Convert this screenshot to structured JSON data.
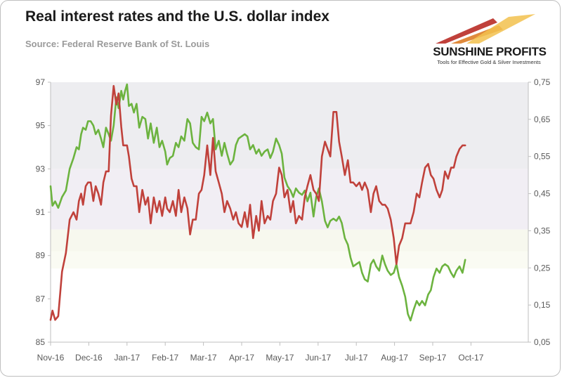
{
  "header": {
    "title": "Real interest rates and the U.S. dollar index",
    "source": "Source: Federal Reserve Bank of St. Louis"
  },
  "logo": {
    "name": "SUNSHINE PROFITS",
    "tagline": "Tools for Effective Gold & Silver Investments"
  },
  "colors": {
    "dollar_series": "#6cb33f",
    "real_rate_series": "#c0413b",
    "axis": "#bfbfbf",
    "band_top": "#ededf0",
    "band_mid": "#f1eef4",
    "band_low": "#f7f8ee",
    "band_low2": "#fafbf3"
  },
  "chart_data": {
    "type": "line",
    "x": [
      "Nov-16",
      "Dec-16",
      "Jan-17",
      "Feb-17",
      "Mar-17",
      "Apr-17",
      "May-17",
      "Jun-17",
      "Jul-17",
      "Aug-17",
      "Sep-17",
      "Oct-17"
    ],
    "x_ticks": [
      "Nov-16",
      "Dec-16",
      "Jan-17",
      "Feb-17",
      "Mar-17",
      "Apr-17",
      "May-17",
      "Jun-17",
      "Jul-17",
      "Aug-17",
      "Sep-17",
      "Oct-17"
    ],
    "x_end": 12.5,
    "y_left": {
      "ylim": [
        85,
        97
      ],
      "ticks": [
        "85",
        "87",
        "89",
        "91",
        "93",
        "95",
        "97"
      ]
    },
    "y_right": {
      "ylim": [
        0.05,
        0.75
      ],
      "ticks": [
        "0,05",
        "0,15",
        "0,25",
        "0,35",
        "0,45",
        "0,55",
        "0,65",
        "0,75"
      ]
    },
    "series": [
      {
        "axis": "left",
        "color": "#6cb33f",
        "points": [
          [
            0.0,
            92.2
          ],
          [
            0.05,
            91.3
          ],
          [
            0.12,
            91.5
          ],
          [
            0.2,
            91.2
          ],
          [
            0.3,
            91.7
          ],
          [
            0.4,
            92.0
          ],
          [
            0.5,
            93.0
          ],
          [
            0.6,
            93.5
          ],
          [
            0.68,
            94.0
          ],
          [
            0.74,
            93.9
          ],
          [
            0.8,
            94.6
          ],
          [
            0.85,
            94.9
          ],
          [
            0.92,
            94.8
          ],
          [
            0.98,
            95.2
          ],
          [
            1.05,
            95.2
          ],
          [
            1.12,
            95.0
          ],
          [
            1.18,
            94.6
          ],
          [
            1.25,
            94.8
          ],
          [
            1.32,
            94.4
          ],
          [
            1.38,
            94.0
          ],
          [
            1.45,
            94.9
          ],
          [
            1.52,
            94.6
          ],
          [
            1.58,
            94.3
          ],
          [
            1.65,
            95.0
          ],
          [
            1.72,
            96.3
          ],
          [
            1.78,
            95.8
          ],
          [
            1.85,
            96.6
          ],
          [
            1.9,
            96.2
          ],
          [
            1.95,
            96.6
          ],
          [
            2.0,
            96.9
          ],
          [
            2.05,
            95.9
          ],
          [
            2.12,
            96.0
          ],
          [
            2.18,
            95.6
          ],
          [
            2.25,
            96.0
          ],
          [
            2.32,
            94.9
          ],
          [
            2.4,
            95.4
          ],
          [
            2.48,
            95.3
          ],
          [
            2.55,
            94.4
          ],
          [
            2.62,
            95.1
          ],
          [
            2.7,
            94.2
          ],
          [
            2.78,
            94.9
          ],
          [
            2.85,
            94.0
          ],
          [
            2.92,
            94.3
          ],
          [
            3.0,
            93.8
          ],
          [
            3.05,
            93.2
          ],
          [
            3.12,
            93.5
          ],
          [
            3.2,
            93.6
          ],
          [
            3.28,
            94.2
          ],
          [
            3.35,
            94.0
          ],
          [
            3.42,
            94.5
          ],
          [
            3.5,
            94.3
          ],
          [
            3.58,
            95.3
          ],
          [
            3.65,
            95.1
          ],
          [
            3.72,
            94.2
          ],
          [
            3.8,
            94.0
          ],
          [
            3.88,
            93.9
          ],
          [
            3.95,
            95.4
          ],
          [
            4.02,
            95.2
          ],
          [
            4.1,
            95.6
          ],
          [
            4.18,
            95.1
          ],
          [
            4.25,
            95.3
          ],
          [
            4.32,
            93.9
          ],
          [
            4.4,
            94.3
          ],
          [
            4.48,
            93.6
          ],
          [
            4.55,
            94.2
          ],
          [
            4.62,
            93.7
          ],
          [
            4.7,
            93.2
          ],
          [
            4.78,
            93.4
          ],
          [
            4.85,
            94.1
          ],
          [
            4.92,
            94.4
          ],
          [
            5.0,
            94.5
          ],
          [
            5.08,
            94.6
          ],
          [
            5.15,
            94.5
          ],
          [
            5.22,
            93.9
          ],
          [
            5.3,
            94.1
          ],
          [
            5.38,
            93.7
          ],
          [
            5.45,
            93.9
          ],
          [
            5.52,
            93.6
          ],
          [
            5.6,
            93.8
          ],
          [
            5.68,
            93.9
          ],
          [
            5.75,
            93.5
          ],
          [
            5.82,
            93.8
          ],
          [
            5.9,
            94.4
          ],
          [
            5.98,
            94.1
          ],
          [
            6.05,
            93.7
          ],
          [
            6.12,
            92.6
          ],
          [
            6.2,
            92.2
          ],
          [
            6.28,
            92.0
          ],
          [
            6.35,
            91.7
          ],
          [
            6.42,
            92.1
          ],
          [
            6.5,
            91.9
          ],
          [
            6.58,
            91.8
          ],
          [
            6.65,
            92.0
          ],
          [
            6.72,
            91.5
          ],
          [
            6.8,
            91.9
          ],
          [
            6.88,
            90.8
          ],
          [
            6.95,
            91.7
          ],
          [
            7.02,
            92.1
          ],
          [
            7.1,
            91.5
          ],
          [
            7.18,
            90.6
          ],
          [
            7.25,
            90.3
          ],
          [
            7.32,
            90.6
          ],
          [
            7.4,
            90.7
          ],
          [
            7.48,
            90.6
          ],
          [
            7.55,
            90.8
          ],
          [
            7.62,
            90.5
          ],
          [
            7.7,
            89.8
          ],
          [
            7.78,
            89.5
          ],
          [
            7.85,
            88.9
          ],
          [
            7.92,
            88.5
          ],
          [
            8.0,
            88.6
          ],
          [
            8.08,
            88.7
          ],
          [
            8.15,
            88.2
          ],
          [
            8.22,
            87.9
          ],
          [
            8.3,
            87.8
          ],
          [
            8.38,
            88.6
          ],
          [
            8.45,
            88.8
          ],
          [
            8.52,
            88.5
          ],
          [
            8.6,
            88.3
          ],
          [
            8.68,
            89.0
          ],
          [
            8.75,
            88.6
          ],
          [
            8.82,
            88.3
          ],
          [
            8.9,
            88.1
          ],
          [
            8.98,
            88.2
          ],
          [
            9.05,
            88.6
          ],
          [
            9.12,
            88.0
          ],
          [
            9.2,
            87.6
          ],
          [
            9.28,
            87.1
          ],
          [
            9.35,
            86.3
          ],
          [
            9.42,
            86.0
          ],
          [
            9.5,
            86.5
          ],
          [
            9.58,
            86.9
          ],
          [
            9.65,
            86.7
          ],
          [
            9.72,
            86.9
          ],
          [
            9.8,
            86.7
          ],
          [
            9.88,
            87.2
          ],
          [
            9.95,
            87.4
          ],
          [
            10.02,
            88.0
          ],
          [
            10.1,
            88.4
          ],
          [
            10.18,
            88.2
          ],
          [
            10.25,
            88.5
          ],
          [
            10.32,
            88.6
          ],
          [
            10.4,
            88.5
          ],
          [
            10.48,
            88.2
          ],
          [
            10.55,
            88.0
          ],
          [
            10.62,
            88.3
          ],
          [
            10.7,
            88.5
          ],
          [
            10.78,
            88.2
          ],
          [
            10.85,
            88.8
          ]
        ]
      },
      {
        "axis": "right",
        "color": "#c0413b",
        "points": [
          [
            0.0,
            0.11
          ],
          [
            0.05,
            0.135
          ],
          [
            0.12,
            0.11
          ],
          [
            0.2,
            0.12
          ],
          [
            0.3,
            0.24
          ],
          [
            0.4,
            0.29
          ],
          [
            0.5,
            0.38
          ],
          [
            0.6,
            0.4
          ],
          [
            0.68,
            0.38
          ],
          [
            0.74,
            0.43
          ],
          [
            0.8,
            0.45
          ],
          [
            0.85,
            0.42
          ],
          [
            0.92,
            0.47
          ],
          [
            0.98,
            0.48
          ],
          [
            1.05,
            0.48
          ],
          [
            1.12,
            0.43
          ],
          [
            1.18,
            0.47
          ],
          [
            1.25,
            0.45
          ],
          [
            1.32,
            0.42
          ],
          [
            1.38,
            0.48
          ],
          [
            1.45,
            0.51
          ],
          [
            1.52,
            0.51
          ],
          [
            1.58,
            0.66
          ],
          [
            1.65,
            0.74
          ],
          [
            1.72,
            0.69
          ],
          [
            1.78,
            0.72
          ],
          [
            1.85,
            0.63
          ],
          [
            1.9,
            0.58
          ],
          [
            1.95,
            0.58
          ],
          [
            2.0,
            0.58
          ],
          [
            2.05,
            0.55
          ],
          [
            2.12,
            0.49
          ],
          [
            2.18,
            0.47
          ],
          [
            2.25,
            0.47
          ],
          [
            2.32,
            0.4
          ],
          [
            2.4,
            0.46
          ],
          [
            2.48,
            0.42
          ],
          [
            2.55,
            0.44
          ],
          [
            2.62,
            0.37
          ],
          [
            2.7,
            0.44
          ],
          [
            2.78,
            0.4
          ],
          [
            2.85,
            0.43
          ],
          [
            2.92,
            0.39
          ],
          [
            3.0,
            0.44
          ],
          [
            3.05,
            0.41
          ],
          [
            3.12,
            0.4
          ],
          [
            3.2,
            0.43
          ],
          [
            3.28,
            0.39
          ],
          [
            3.35,
            0.46
          ],
          [
            3.42,
            0.4
          ],
          [
            3.5,
            0.44
          ],
          [
            3.58,
            0.41
          ],
          [
            3.65,
            0.34
          ],
          [
            3.72,
            0.38
          ],
          [
            3.8,
            0.38
          ],
          [
            3.88,
            0.45
          ],
          [
            3.95,
            0.46
          ],
          [
            4.02,
            0.5
          ],
          [
            4.1,
            0.58
          ],
          [
            4.18,
            0.5
          ],
          [
            4.25,
            0.6
          ],
          [
            4.32,
            0.51
          ],
          [
            4.4,
            0.48
          ],
          [
            4.48,
            0.45
          ],
          [
            4.55,
            0.4
          ],
          [
            4.62,
            0.43
          ],
          [
            4.7,
            0.41
          ],
          [
            4.78,
            0.38
          ],
          [
            4.85,
            0.4
          ],
          [
            4.92,
            0.37
          ],
          [
            5.0,
            0.36
          ],
          [
            5.08,
            0.4
          ],
          [
            5.15,
            0.36
          ],
          [
            5.22,
            0.42
          ],
          [
            5.3,
            0.33
          ],
          [
            5.38,
            0.39
          ],
          [
            5.45,
            0.35
          ],
          [
            5.52,
            0.43
          ],
          [
            5.6,
            0.37
          ],
          [
            5.68,
            0.39
          ],
          [
            5.75,
            0.38
          ],
          [
            5.82,
            0.43
          ],
          [
            5.9,
            0.45
          ],
          [
            5.98,
            0.52
          ],
          [
            6.05,
            0.5
          ],
          [
            6.12,
            0.44
          ],
          [
            6.2,
            0.46
          ],
          [
            6.28,
            0.4
          ],
          [
            6.35,
            0.43
          ],
          [
            6.42,
            0.37
          ],
          [
            6.5,
            0.39
          ],
          [
            6.58,
            0.38
          ],
          [
            6.65,
            0.44
          ],
          [
            6.72,
            0.47
          ],
          [
            6.8,
            0.5
          ],
          [
            6.88,
            0.46
          ],
          [
            6.95,
            0.45
          ],
          [
            7.02,
            0.43
          ],
          [
            7.1,
            0.55
          ],
          [
            7.18,
            0.59
          ],
          [
            7.25,
            0.57
          ],
          [
            7.32,
            0.55
          ],
          [
            7.4,
            0.67
          ],
          [
            7.48,
            0.67
          ],
          [
            7.55,
            0.59
          ],
          [
            7.62,
            0.55
          ],
          [
            7.7,
            0.5
          ],
          [
            7.78,
            0.54
          ],
          [
            7.85,
            0.48
          ],
          [
            7.92,
            0.48
          ],
          [
            8.0,
            0.47
          ],
          [
            8.08,
            0.48
          ],
          [
            8.15,
            0.46
          ],
          [
            8.22,
            0.48
          ],
          [
            8.3,
            0.46
          ],
          [
            8.38,
            0.4
          ],
          [
            8.45,
            0.45
          ],
          [
            8.52,
            0.47
          ],
          [
            8.6,
            0.43
          ],
          [
            8.68,
            0.42
          ],
          [
            8.75,
            0.42
          ],
          [
            8.82,
            0.41
          ],
          [
            8.9,
            0.38
          ],
          [
            8.98,
            0.33
          ],
          [
            9.05,
            0.26
          ],
          [
            9.12,
            0.31
          ],
          [
            9.2,
            0.33
          ],
          [
            9.28,
            0.37
          ],
          [
            9.35,
            0.37
          ],
          [
            9.42,
            0.37
          ],
          [
            9.5,
            0.4
          ],
          [
            9.58,
            0.45
          ],
          [
            9.65,
            0.44
          ],
          [
            9.72,
            0.48
          ],
          [
            9.8,
            0.52
          ],
          [
            9.88,
            0.53
          ],
          [
            9.95,
            0.5
          ],
          [
            10.02,
            0.49
          ],
          [
            10.1,
            0.46
          ],
          [
            10.18,
            0.44
          ],
          [
            10.25,
            0.46
          ],
          [
            10.32,
            0.51
          ],
          [
            10.4,
            0.49
          ],
          [
            10.48,
            0.52
          ],
          [
            10.55,
            0.52
          ],
          [
            10.62,
            0.55
          ],
          [
            10.7,
            0.57
          ],
          [
            10.78,
            0.58
          ],
          [
            10.85,
            0.58
          ]
        ]
      }
    ],
    "grid": false,
    "legend": "none"
  }
}
